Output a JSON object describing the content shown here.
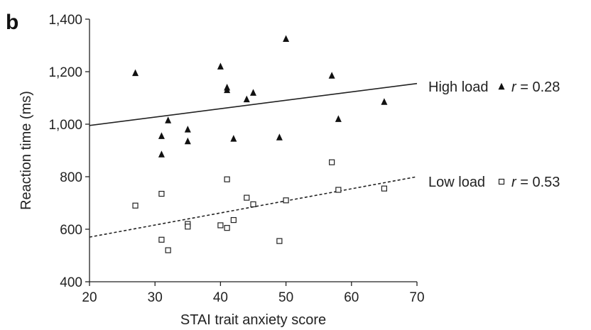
{
  "panel_label": "b",
  "chart_data": {
    "type": "scatter",
    "xlabel": "STAI trait anxiety score",
    "ylabel": "Reaction time (ms)",
    "xlim": [
      20,
      70
    ],
    "ylim": [
      400,
      1400
    ],
    "xticks": [
      20,
      30,
      40,
      50,
      60,
      70
    ],
    "xtick_labels": [
      "20",
      "30",
      "40",
      "50",
      "60",
      "70"
    ],
    "yticks": [
      400,
      600,
      800,
      1000,
      1200,
      1400
    ],
    "ytick_labels": [
      "400",
      "600",
      "800",
      "1,000",
      "1,200",
      "1,400"
    ],
    "grid": false,
    "series": [
      {
        "name": "High load",
        "marker": "filled-triangle",
        "r_label": "r = 0.28",
        "r_symbol": "r",
        "r_value": "= 0.28",
        "fit": {
          "style": "solid",
          "x": [
            20,
            70
          ],
          "y": [
            995,
            1155
          ]
        },
        "points": [
          [
            27,
            1195
          ],
          [
            31,
            955
          ],
          [
            31,
            885
          ],
          [
            32,
            1015
          ],
          [
            35,
            980
          ],
          [
            35,
            935
          ],
          [
            40,
            1220
          ],
          [
            41,
            1140
          ],
          [
            41,
            1130
          ],
          [
            42,
            945
          ],
          [
            44,
            1095
          ],
          [
            45,
            1120
          ],
          [
            49,
            950
          ],
          [
            50,
            1325
          ],
          [
            57,
            1185
          ],
          [
            58,
            1020
          ],
          [
            65,
            1085
          ]
        ]
      },
      {
        "name": "Low load",
        "marker": "open-square",
        "r_label": "r = 0.53",
        "r_symbol": "r",
        "r_value": "= 0.53",
        "fit": {
          "style": "dashed",
          "x": [
            20,
            70
          ],
          "y": [
            570,
            800
          ]
        },
        "points": [
          [
            27,
            690
          ],
          [
            31,
            735
          ],
          [
            31,
            560
          ],
          [
            32,
            520
          ],
          [
            35,
            620
          ],
          [
            35,
            610
          ],
          [
            40,
            615
          ],
          [
            41,
            790
          ],
          [
            41,
            605
          ],
          [
            42,
            635
          ],
          [
            44,
            720
          ],
          [
            45,
            695
          ],
          [
            49,
            555
          ],
          [
            50,
            710
          ],
          [
            57,
            855
          ],
          [
            58,
            750
          ],
          [
            65,
            755
          ]
        ]
      }
    ]
  }
}
